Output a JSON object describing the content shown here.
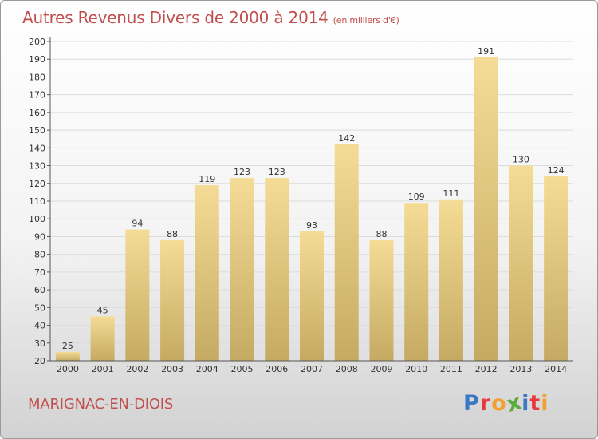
{
  "header": {
    "title": "Autres Revenus Divers de 2000 à 2014",
    "unit": "(en milliers d'€)"
  },
  "footer": {
    "commune": "MARIGNAC-EN-DIOIS",
    "brand": [
      "P",
      "r",
      "o",
      "x",
      "i",
      "t",
      "i"
    ]
  },
  "colors": {
    "title": "#c0504d",
    "bar_top": "#f5dc96",
    "bar_bottom": "#c4aa62",
    "brand": [
      "#3a78c4",
      "#e8383d",
      "#f0a22e",
      "#5aaa3c",
      "#3a78c4",
      "#e8383d",
      "#f0a22e"
    ]
  },
  "chart_data": {
    "type": "bar",
    "title": "Autres Revenus Divers de 2000 à 2014",
    "xlabel": "",
    "ylabel": "",
    "ylim": [
      20,
      200
    ],
    "yticks": [
      20,
      30,
      40,
      50,
      60,
      70,
      80,
      90,
      100,
      110,
      120,
      130,
      140,
      150,
      160,
      170,
      180,
      190,
      200
    ],
    "grid": "y",
    "categories": [
      "2000",
      "2001",
      "2002",
      "2003",
      "2004",
      "2005",
      "2006",
      "2007",
      "2008",
      "2009",
      "2010",
      "2011",
      "2012",
      "2013",
      "2014"
    ],
    "values": [
      25,
      45,
      94,
      88,
      119,
      123,
      123,
      93,
      142,
      88,
      109,
      111,
      191,
      130,
      124
    ]
  }
}
